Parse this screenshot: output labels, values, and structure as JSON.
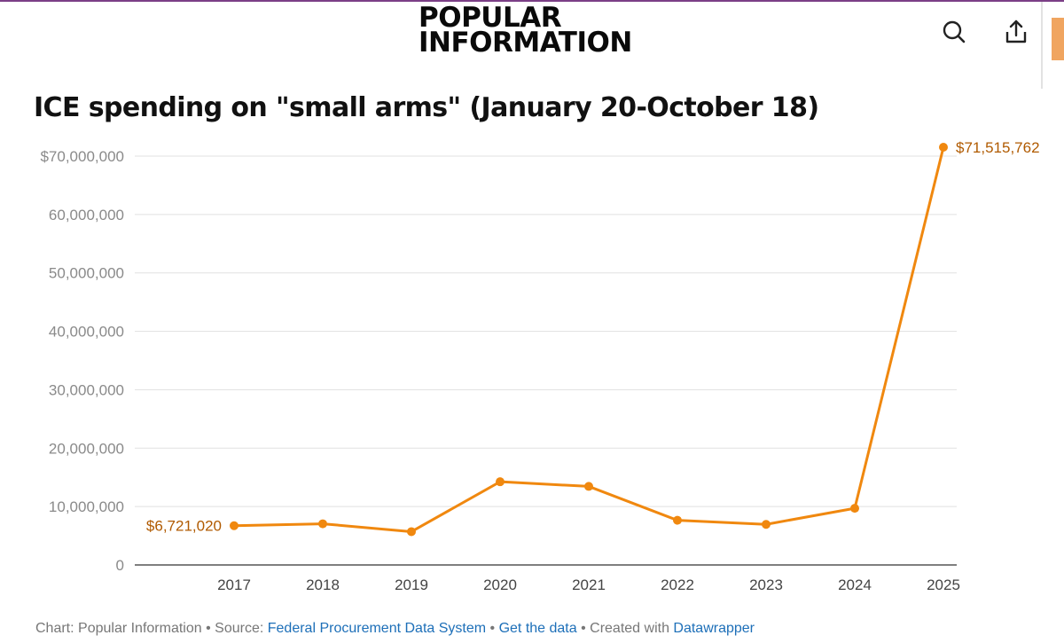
{
  "header": {
    "logo_line1": "POPULAR",
    "logo_line2": "INFORMATION",
    "search_icon": "search-icon",
    "share_icon": "share-icon"
  },
  "colors": {
    "accent": "#f0880f",
    "label": "#b05a00",
    "top_line": "#7b3f86",
    "side_tab": "#f0a560"
  },
  "chart_data": {
    "type": "line",
    "title": "ICE spending on \"small arms\" (January 20-October 18)",
    "x": [
      "2017",
      "2018",
      "2019",
      "2020",
      "2021",
      "2022",
      "2023",
      "2024",
      "2025"
    ],
    "series": [
      {
        "values": [
          6721020,
          7050000,
          5700000,
          14250000,
          13450000,
          7650000,
          6950000,
          9700000,
          71515762
        ]
      }
    ],
    "ylim": [
      0,
      70000000
    ],
    "yticks": [
      0,
      10000000,
      20000000,
      30000000,
      40000000,
      50000000,
      60000000,
      70000000
    ],
    "ytick_labels": [
      "0",
      "10,000,000",
      "20,000,000",
      "30,000,000",
      "40,000,000",
      "50,000,000",
      "60,000,000",
      "$70,000,000"
    ],
    "data_labels": [
      {
        "x": "2017",
        "text": "$6,721,020"
      },
      {
        "x": "2025",
        "text": "$71,515,762"
      }
    ],
    "grid": true,
    "xlabel": "",
    "ylabel": ""
  },
  "footer": {
    "credit": "Chart: Popular Information",
    "sep1": " • ",
    "source_prefix": "Source: ",
    "source_link": "Federal Procurement Data System",
    "sep2": " • ",
    "get_data_link": "Get the data",
    "sep3": " • ",
    "created_prefix": "Created with ",
    "datawrapper_link": "Datawrapper"
  }
}
